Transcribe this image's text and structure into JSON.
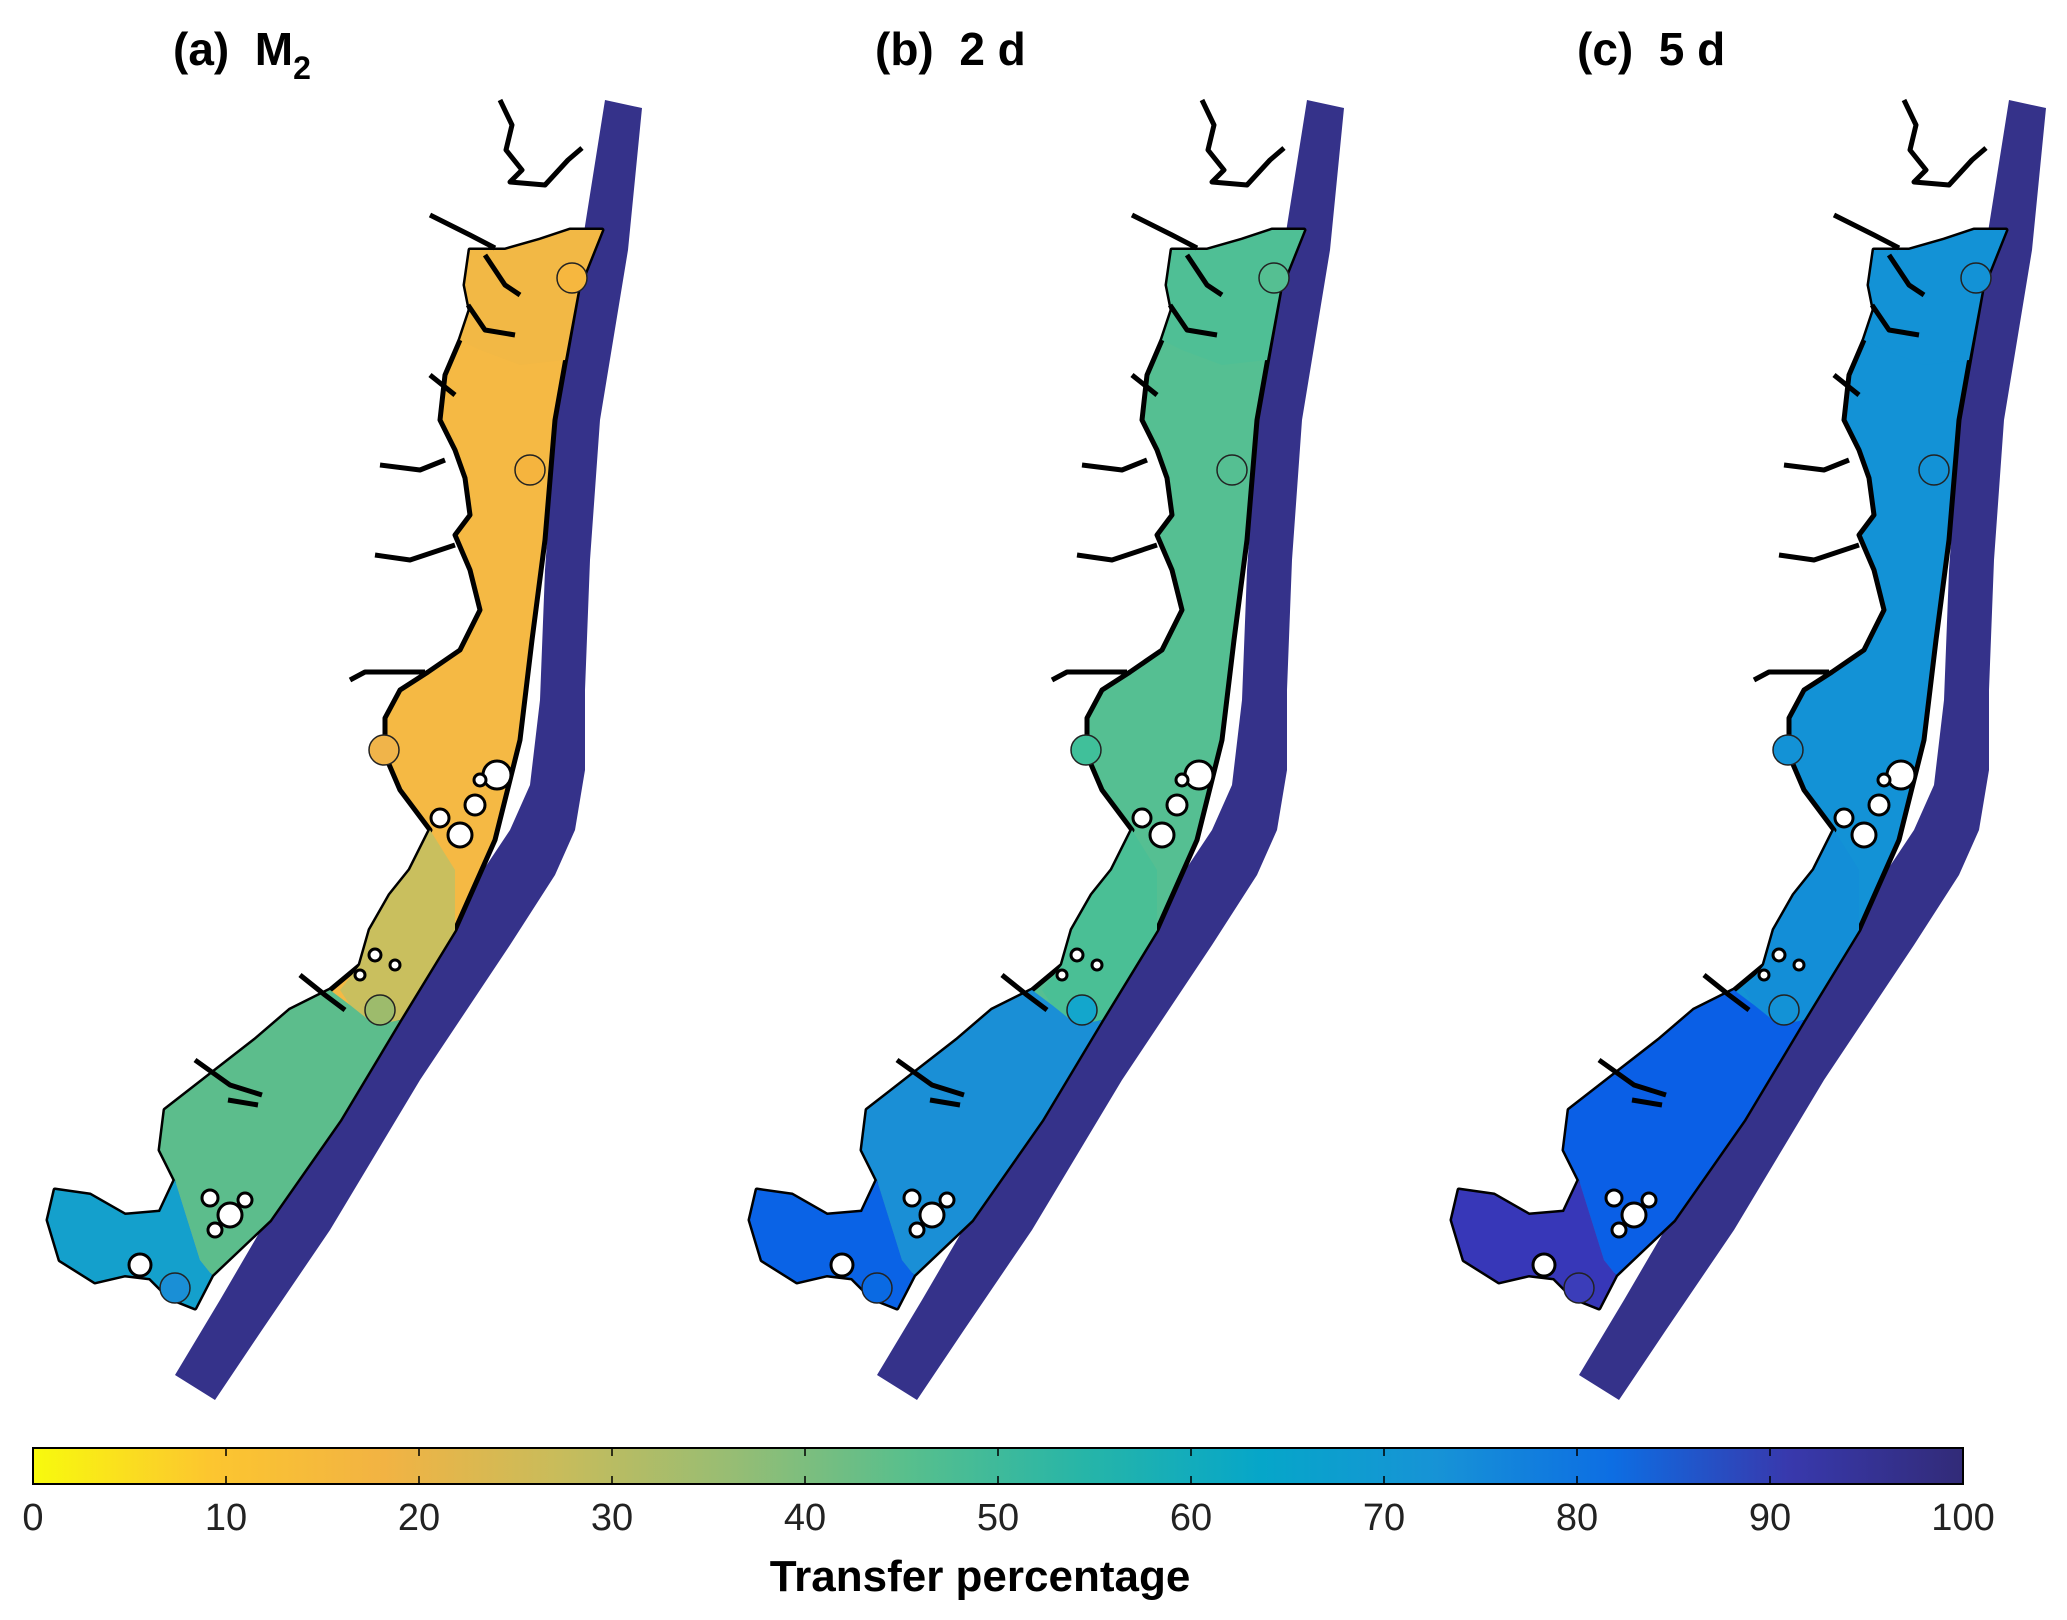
{
  "panels": [
    {
      "label": "(a)",
      "title": "M",
      "subscript": "2",
      "main": "#f5b944",
      "upper": "#f2b845",
      "mid": "#f5b43e",
      "transition": "#c9bf5e",
      "southbay": "#5cbd8c",
      "westbay": "#14a0cc",
      "stations": [
        "#f6b73f",
        "#f5b43e",
        "#f0b44a",
        "#9dbb6c",
        "#1a8fd6"
      ]
    },
    {
      "label": "(b)",
      "title": "2 d",
      "subscript": "",
      "main": "#55bf92",
      "upper": "#4fbf95",
      "mid": "#58c08f",
      "transition": "#4abf95",
      "southbay": "#1a8fd6",
      "westbay": "#0a63e6",
      "stations": [
        "#55bf92",
        "#55bf92",
        "#40c09a",
        "#13a6cc",
        "#0a6ae3"
      ]
    },
    {
      "label": "(c)",
      "title": "5 d",
      "subscript": "",
      "main": "#1392d6",
      "upper": "#1392d6",
      "mid": "#1392d6",
      "transition": "#138ed7",
      "southbay": "#0a5fe6",
      "westbay": "#3737b8",
      "stations": [
        "#1392d6",
        "#1392d6",
        "#1392d6",
        "#1392d6",
        "#3b3db9"
      ]
    }
  ],
  "ocean_color": "#35328a",
  "colorbar": {
    "title": "Transfer percentage",
    "ticks": [
      "0",
      "10",
      "20",
      "30",
      "40",
      "50",
      "60",
      "70",
      "80",
      "90",
      "100"
    ],
    "colors": [
      "#f8fa0d",
      "#fcc62f",
      "#f2b343",
      "#c8bc5b",
      "#96bd74",
      "#57bf8d",
      "#26b5a8",
      "#06a6c9",
      "#1793d6",
      "#0d6ee3",
      "#3839ad",
      "#322b78"
    ]
  }
}
